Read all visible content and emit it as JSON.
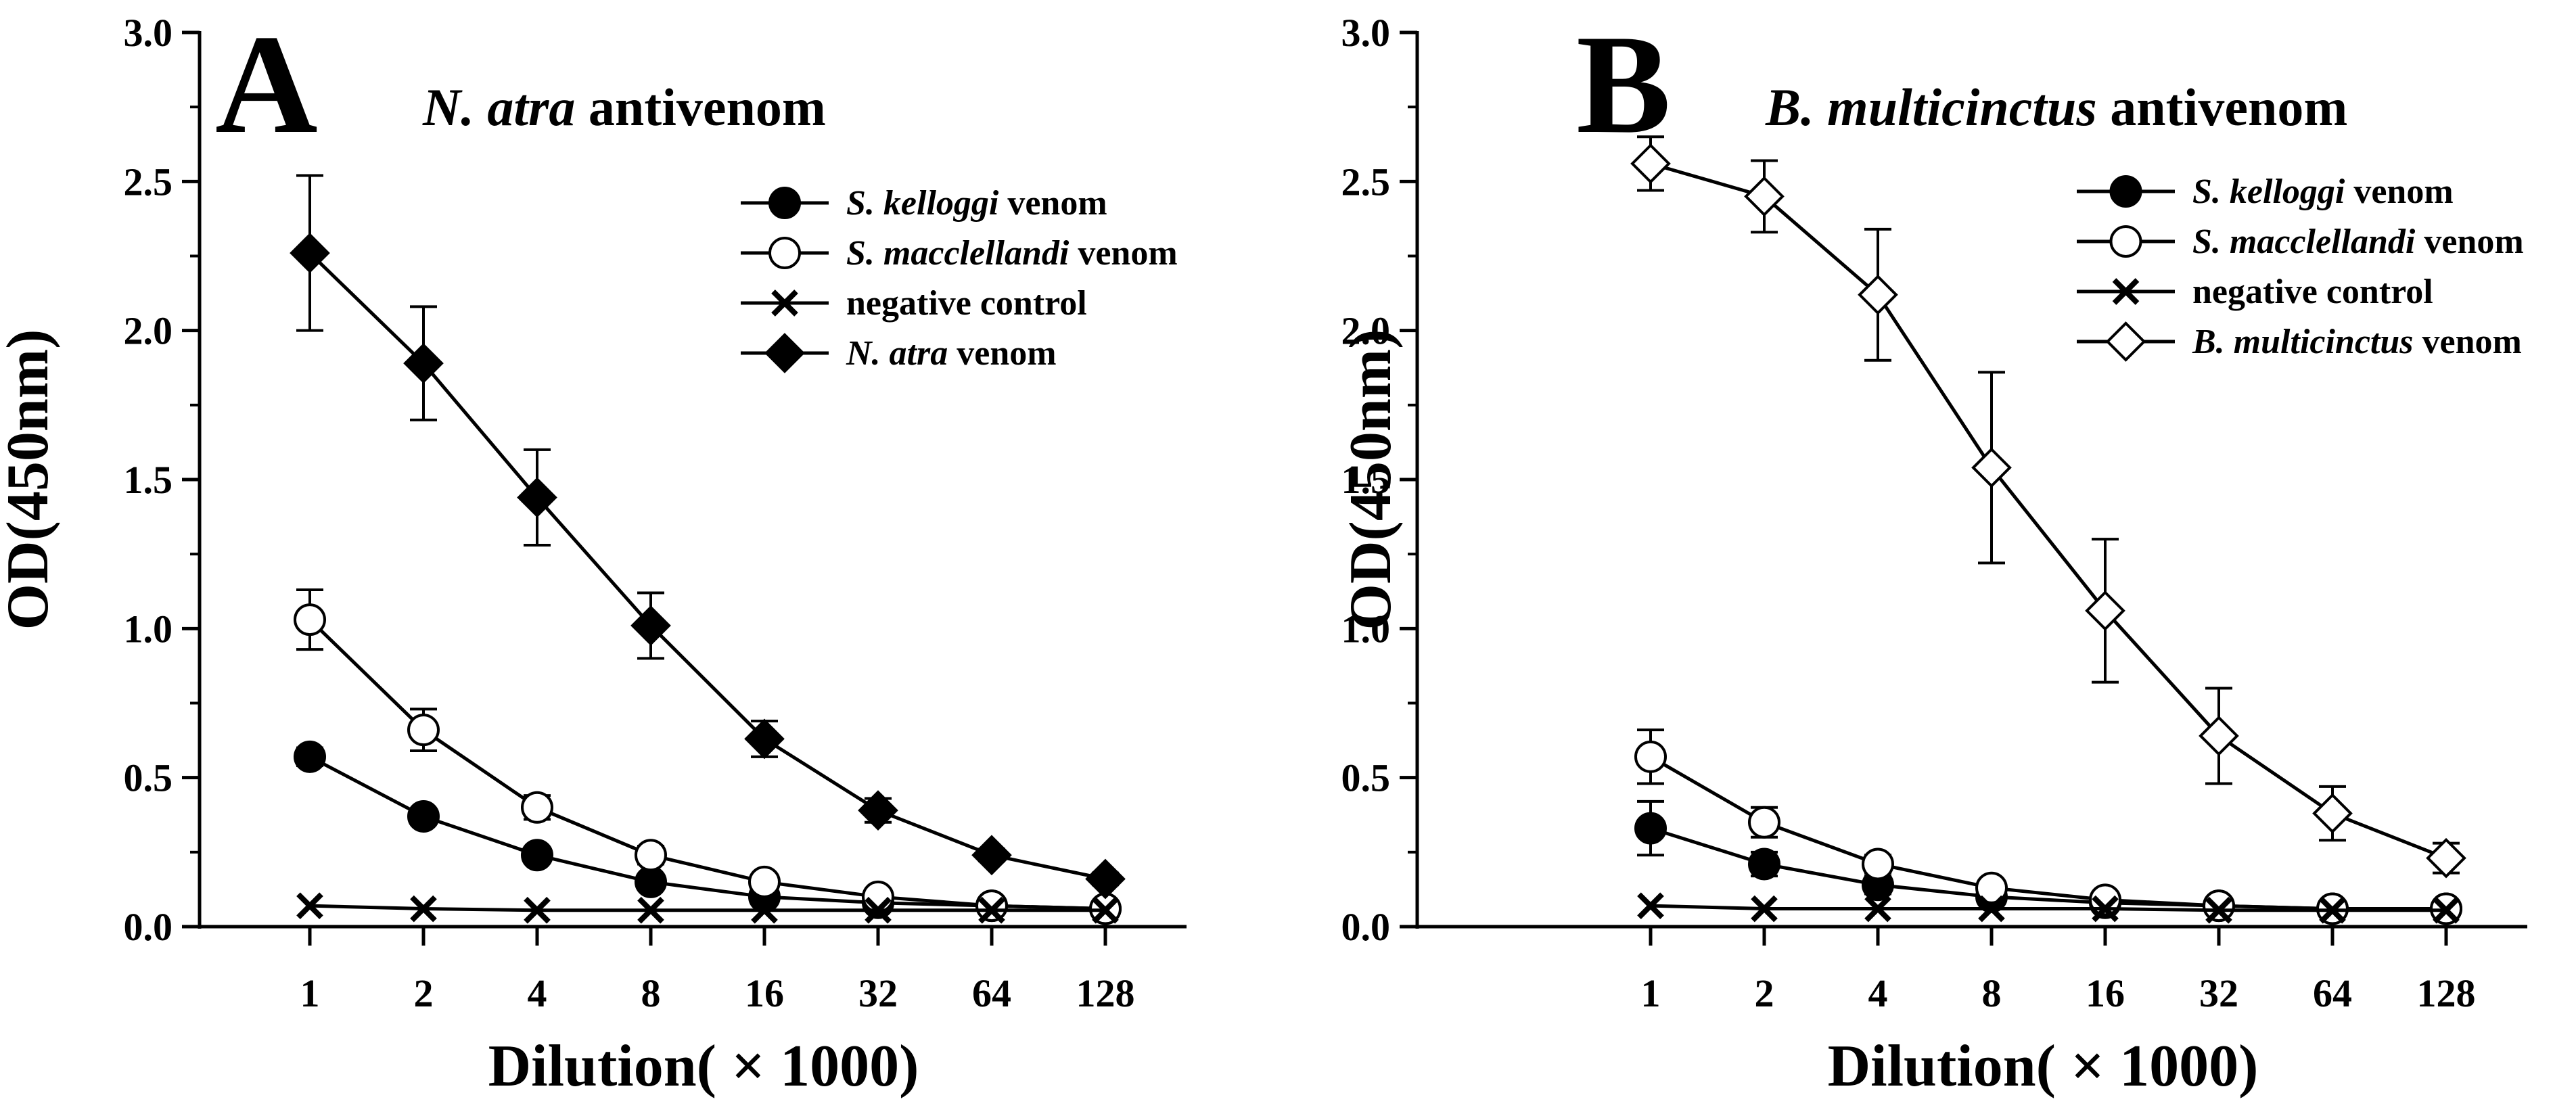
{
  "chart_data": [
    {
      "type": "line",
      "panel": "A",
      "title_italic": "N. atra",
      "title_rest": " antivenom",
      "xlabel": "Dilution( × 1000)",
      "ylabel": "OD(450nm)",
      "x_scale": "log2",
      "categories": [
        "1",
        "2",
        "4",
        "8",
        "16",
        "32",
        "64",
        "128"
      ],
      "ylim": [
        0,
        3.0
      ],
      "yticks": [
        "0.0",
        "0.5",
        "1.0",
        "1.5",
        "2.0",
        "2.5",
        "3.0"
      ],
      "legend_position": "top-right",
      "series": [
        {
          "name_italic": "S. kelloggi",
          "name_rest": " venom",
          "marker": "filled-circle",
          "values": [
            0.57,
            0.37,
            0.24,
            0.15,
            0.1,
            0.08,
            0.07,
            0.06
          ],
          "errors": [
            0.03,
            0.02,
            0.02,
            0.02,
            0.01,
            0.01,
            0.01,
            0.01
          ]
        },
        {
          "name_italic": "S. macclellandi",
          "name_rest": " venom",
          "marker": "open-circle",
          "values": [
            1.03,
            0.66,
            0.4,
            0.24,
            0.15,
            0.1,
            0.07,
            0.06
          ],
          "errors": [
            0.1,
            0.07,
            0.04,
            0.03,
            0.02,
            0.01,
            0.01,
            0.01
          ]
        },
        {
          "name_italic": "",
          "name_rest": "negative control",
          "marker": "x",
          "values": [
            0.07,
            0.06,
            0.055,
            0.055,
            0.055,
            0.055,
            0.055,
            0.055
          ],
          "errors": [
            0,
            0,
            0,
            0,
            0,
            0,
            0,
            0
          ]
        },
        {
          "name_italic": "N. atra",
          "name_rest": " venom",
          "marker": "filled-diamond",
          "values": [
            2.26,
            1.89,
            1.44,
            1.01,
            0.63,
            0.39,
            0.24,
            0.16
          ],
          "errors": [
            0.26,
            0.19,
            0.16,
            0.11,
            0.06,
            0.04,
            0.02,
            0.02
          ]
        }
      ]
    },
    {
      "type": "line",
      "panel": "B",
      "title_italic": "B. multicinctus",
      "title_rest": " antivenom",
      "xlabel": "Dilution( × 1000)",
      "ylabel": "OD(450nm)",
      "x_scale": "log2",
      "categories": [
        "1",
        "2",
        "4",
        "8",
        "16",
        "32",
        "64",
        "128"
      ],
      "ylim": [
        0,
        3.0
      ],
      "yticks": [
        "0.0",
        "0.5",
        "1.0",
        "1.5",
        "2.0",
        "2.5",
        "3.0"
      ],
      "legend_position": "top-right",
      "series": [
        {
          "name_italic": "S. kelloggi",
          "name_rest": " venom",
          "marker": "filled-circle",
          "values": [
            0.33,
            0.21,
            0.14,
            0.1,
            0.08,
            0.07,
            0.06,
            0.06
          ],
          "errors": [
            0.09,
            0.04,
            0.03,
            0.02,
            0.01,
            0.01,
            0.01,
            0.01
          ]
        },
        {
          "name_italic": "S. macclellandi",
          "name_rest": " venom",
          "marker": "open-circle",
          "values": [
            0.57,
            0.35,
            0.21,
            0.13,
            0.09,
            0.07,
            0.06,
            0.06
          ],
          "errors": [
            0.09,
            0.05,
            0.03,
            0.02,
            0.01,
            0.01,
            0.01,
            0.01
          ]
        },
        {
          "name_italic": "",
          "name_rest": "negative control",
          "marker": "x",
          "values": [
            0.07,
            0.06,
            0.06,
            0.06,
            0.06,
            0.055,
            0.055,
            0.055
          ],
          "errors": [
            0,
            0,
            0,
            0,
            0,
            0,
            0,
            0
          ]
        },
        {
          "name_italic": "B. multicinctus",
          "name_rest": " venom",
          "marker": "open-diamond",
          "values": [
            2.56,
            2.45,
            2.12,
            1.54,
            1.06,
            0.64,
            0.38,
            0.23
          ],
          "errors": [
            0.09,
            0.12,
            0.22,
            0.32,
            0.24,
            0.16,
            0.09,
            0.05
          ]
        }
      ]
    }
  ]
}
